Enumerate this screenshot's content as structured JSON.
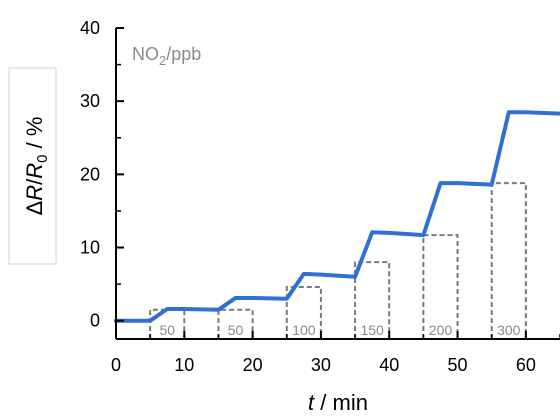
{
  "chart_data": {
    "type": "line",
    "xlabel_var": "t",
    "xlabel_unit": " / min",
    "ylabel_delta": "Δ",
    "ylabel_R": "R",
    "ylabel_slash": "/",
    "ylabel_R0": "R",
    "ylabel_sub0": "0",
    "ylabel_unit": " / %",
    "annotation_main": "NO",
    "annotation_sub": "2",
    "annotation_tail": "/ppb",
    "xlim": [
      0,
      65
    ],
    "ylim": [
      -2.5,
      40
    ],
    "x_ticks": [
      0,
      10,
      20,
      30,
      40,
      50,
      60
    ],
    "y_ticks": [
      0,
      10,
      20,
      30,
      40
    ],
    "grid": false,
    "series": [
      {
        "color": "#2f6fd6",
        "x": [
          0,
          5,
          7.5,
          10,
          15,
          17.5,
          20,
          25,
          27.5,
          30,
          35,
          37.5,
          40,
          45,
          47.5,
          50,
          55,
          57.5,
          60,
          65
        ],
        "y": [
          0,
          0,
          1.6,
          1.6,
          1.5,
          3.1,
          3.1,
          3.0,
          6.4,
          6.3,
          6.0,
          12.1,
          12.0,
          11.7,
          18.8,
          18.8,
          18.6,
          28.5,
          28.5,
          28.3
        ]
      }
    ],
    "pulses": [
      {
        "x_start": 5,
        "x_end": 10,
        "height": 1.5,
        "label": "50"
      },
      {
        "x_start": 15,
        "x_end": 20,
        "height": 1.5,
        "label": "50"
      },
      {
        "x_start": 25,
        "x_end": 30,
        "height": 4.6,
        "label": "100"
      },
      {
        "x_start": 35,
        "x_end": 40,
        "height": 8.0,
        "label": "150"
      },
      {
        "x_start": 45,
        "x_end": 50,
        "height": 11.7,
        "label": "200"
      },
      {
        "x_start": 55,
        "x_end": 60,
        "height": 18.8,
        "label": "300"
      }
    ],
    "pulse_color": "#7a7a7a",
    "axis_color": "#000000"
  }
}
